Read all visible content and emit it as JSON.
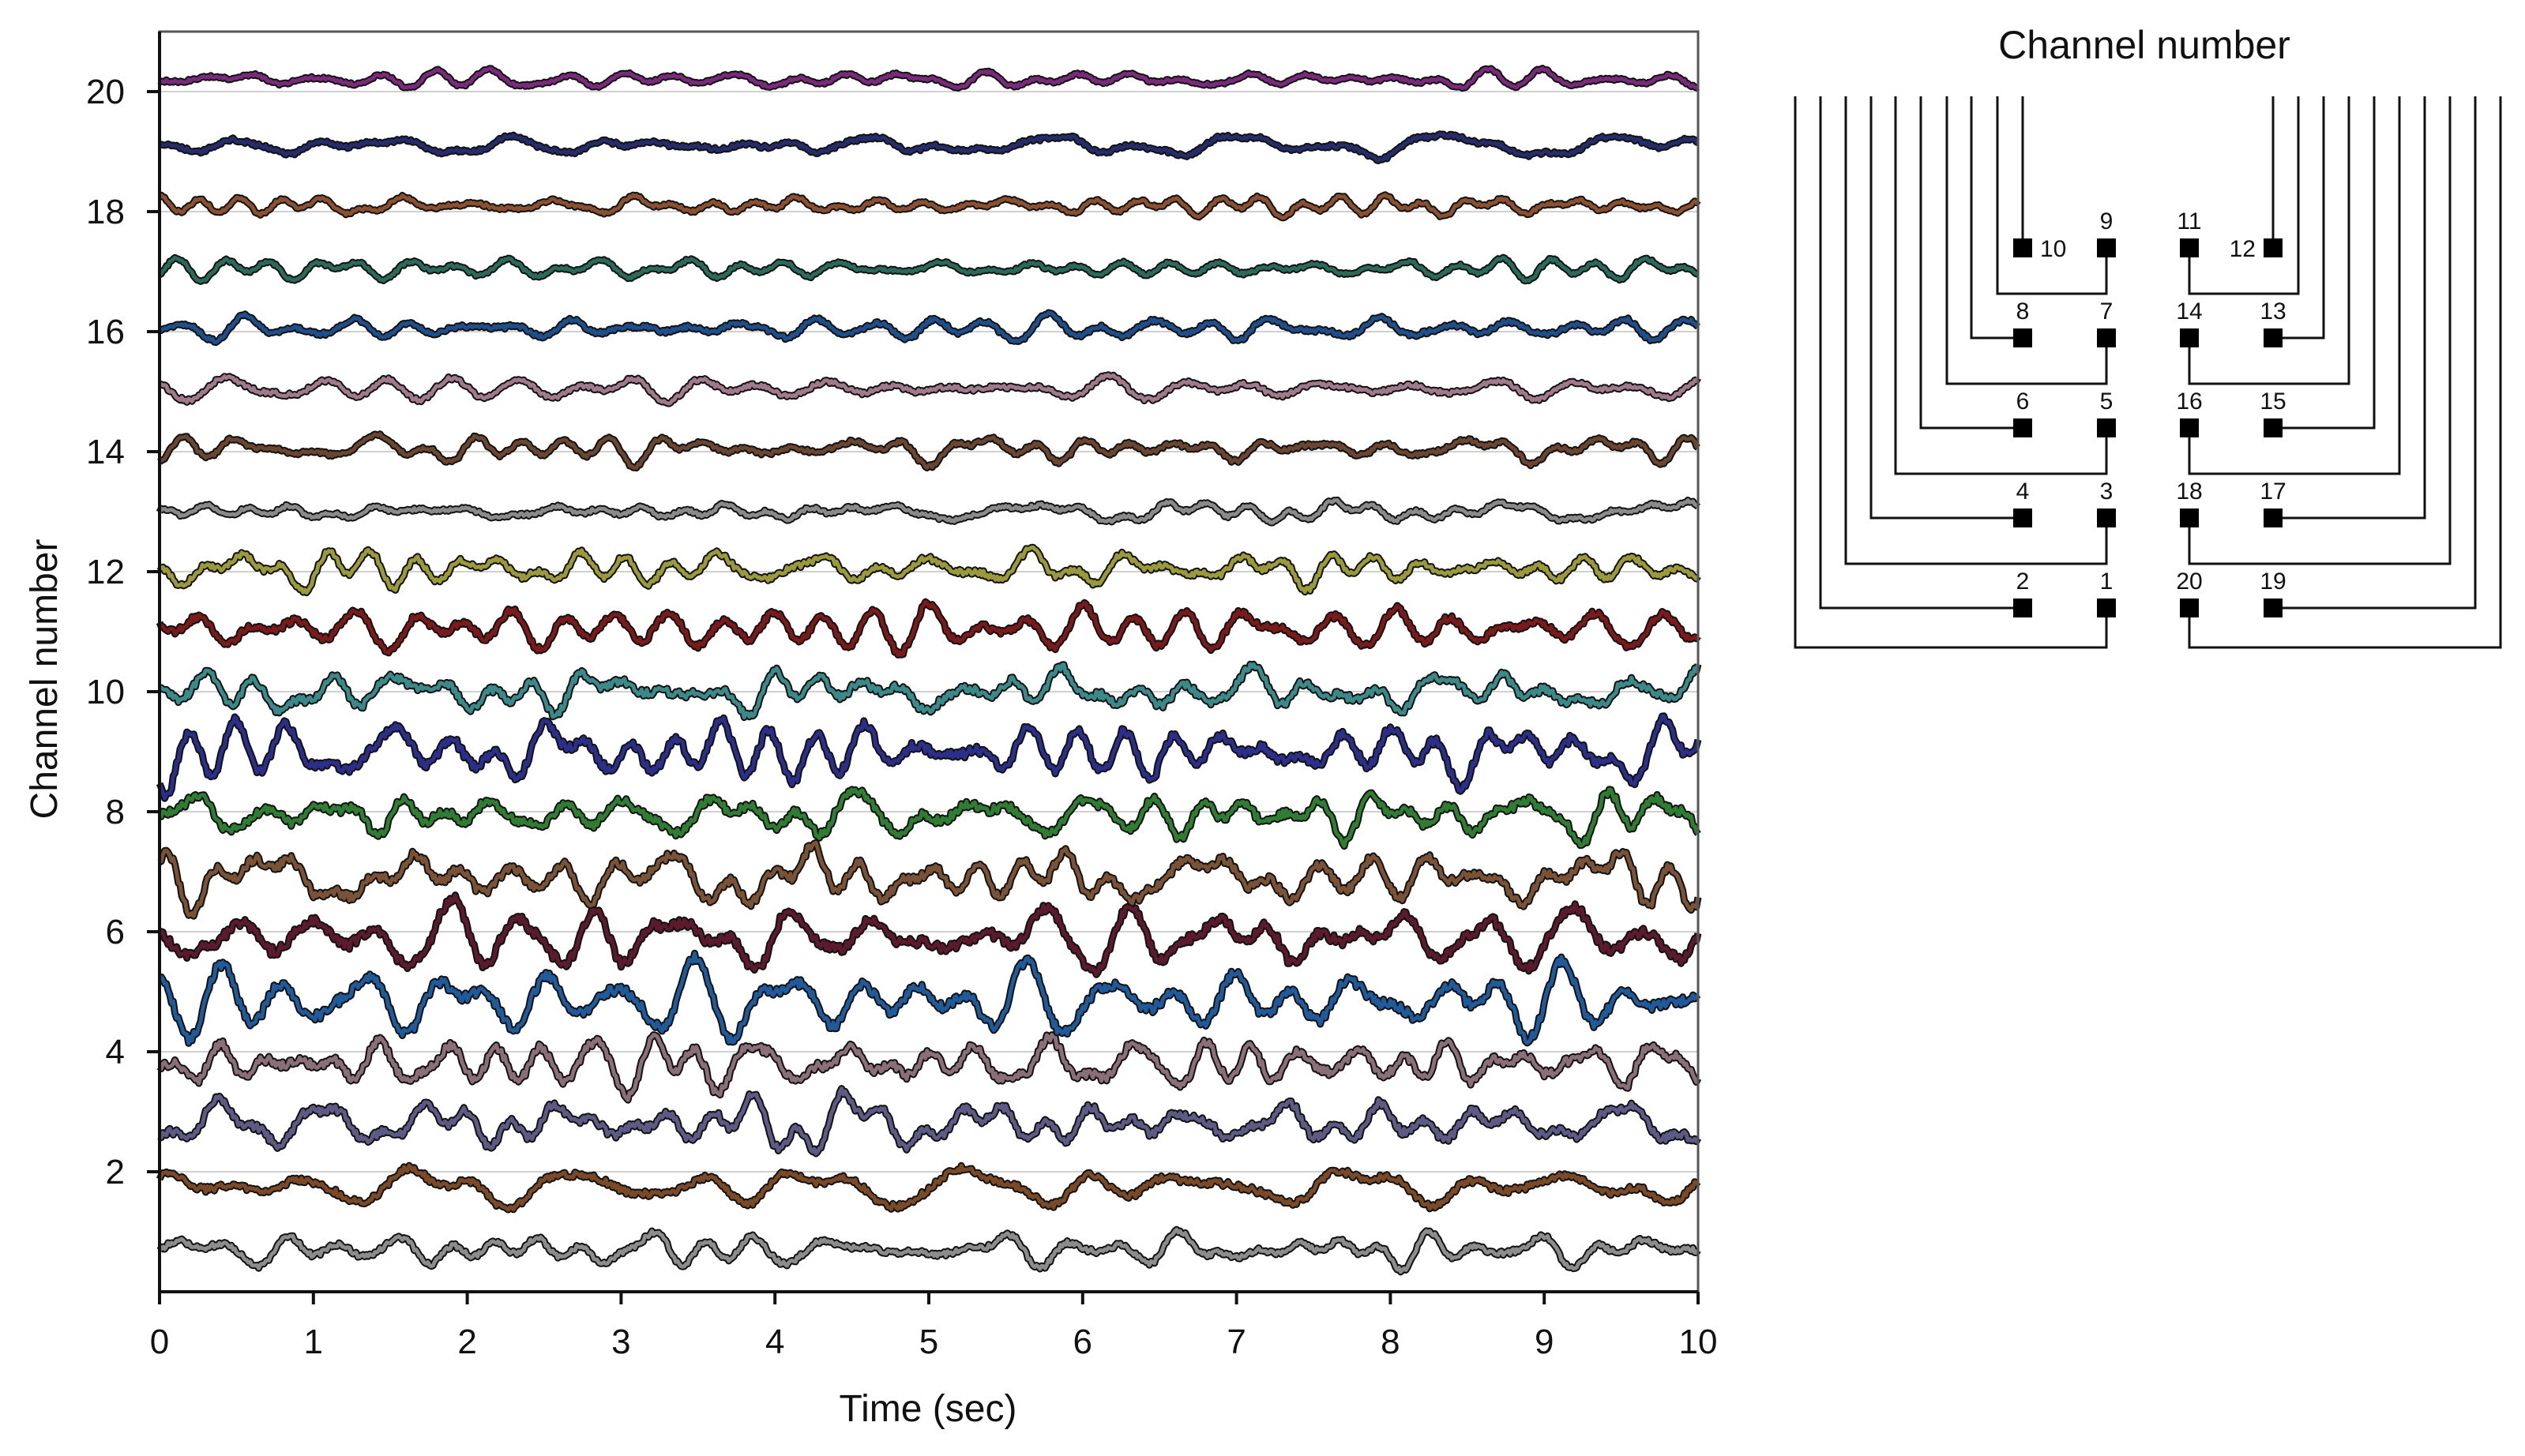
{
  "chart_data": {
    "type": "line",
    "xlabel": "Time (sec)",
    "ylabel": "Channel number",
    "xlim": [
      0,
      10
    ],
    "ylim": [
      0,
      21
    ],
    "x_ticks": [
      0,
      1,
      2,
      3,
      4,
      5,
      6,
      7,
      8,
      9,
      10
    ],
    "y_ticks": [
      2,
      4,
      6,
      8,
      10,
      12,
      14,
      16,
      18,
      20
    ],
    "grid": "horizontal",
    "series": [
      {
        "channel": 1,
        "color": "#8c8c8c",
        "baseline": 0.7,
        "amplitude": 0.22
      },
      {
        "channel": 2,
        "color": "#7a4a26",
        "baseline": 1.75,
        "amplitude": 0.28
      },
      {
        "channel": 3,
        "color": "#5e5a86",
        "baseline": 2.8,
        "amplitude": 0.35
      },
      {
        "channel": 4,
        "color": "#8b6f78",
        "baseline": 3.8,
        "amplitude": 0.38
      },
      {
        "channel": 5,
        "color": "#1f5a9a",
        "baseline": 4.85,
        "amplitude": 0.45
      },
      {
        "channel": 6,
        "color": "#5c1a2e",
        "baseline": 5.9,
        "amplitude": 0.45
      },
      {
        "channel": 7,
        "color": "#7a5236",
        "baseline": 6.9,
        "amplitude": 0.4
      },
      {
        "channel": 8,
        "color": "#2e7d32",
        "baseline": 7.95,
        "amplitude": 0.38
      },
      {
        "channel": 9,
        "color": "#2b2f8a",
        "baseline": 9.0,
        "amplitude": 0.42
      },
      {
        "channel": 10,
        "color": "#3a8a8a",
        "baseline": 10.0,
        "amplitude": 0.35
      },
      {
        "channel": 11,
        "color": "#7a1a1a",
        "baseline": 11.05,
        "amplitude": 0.3
      },
      {
        "channel": 12,
        "color": "#9a9a3a",
        "baseline": 12.05,
        "amplitude": 0.25
      },
      {
        "channel": 13,
        "color": "#8a8a8a",
        "baseline": 13.0,
        "amplitude": 0.15
      },
      {
        "channel": 14,
        "color": "#6a4530",
        "baseline": 14.05,
        "amplitude": 0.18
      },
      {
        "channel": 15,
        "color": "#a07a8a",
        "baseline": 15.05,
        "amplitude": 0.18
      },
      {
        "channel": 16,
        "color": "#1f4f8a",
        "baseline": 16.05,
        "amplitude": 0.18
      },
      {
        "channel": 17,
        "color": "#2a6a5a",
        "baseline": 17.05,
        "amplitude": 0.14
      },
      {
        "channel": 18,
        "color": "#8a5030",
        "baseline": 18.1,
        "amplitude": 0.14
      },
      {
        "channel": 19,
        "color": "#262c6a",
        "baseline": 19.1,
        "amplitude": 0.16
      },
      {
        "channel": 20,
        "color": "#7a2a7a",
        "baseline": 20.2,
        "amplitude": 0.12
      }
    ]
  },
  "diagram": {
    "title": "Channel number",
    "pad_rows": [
      {
        "left_outer": "10",
        "left_inner": "9",
        "right_inner": "11",
        "right_outer": "12"
      },
      {
        "left_outer": "8",
        "left_inner": "7",
        "right_inner": "14",
        "right_outer": "13"
      },
      {
        "left_outer": "6",
        "left_inner": "5",
        "right_inner": "16",
        "right_outer": "15"
      },
      {
        "left_outer": "4",
        "left_inner": "3",
        "right_inner": "18",
        "right_outer": "17"
      },
      {
        "left_outer": "2",
        "left_inner": "1",
        "right_inner": "20",
        "right_outer": "19"
      }
    ]
  }
}
